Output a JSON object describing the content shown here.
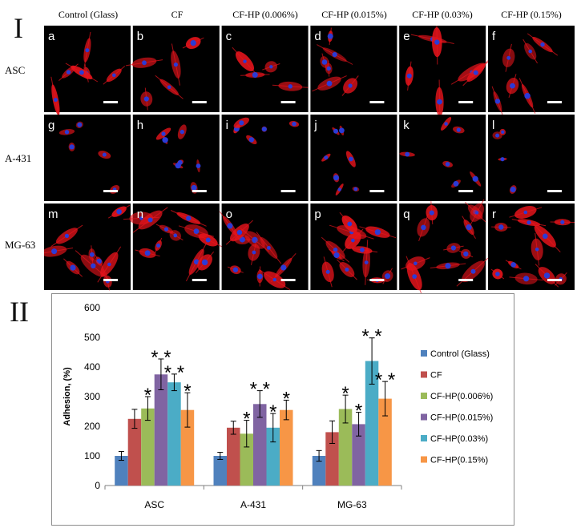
{
  "figure": {
    "panel_I": "I",
    "panel_II": "II",
    "columns": [
      "Control (Glass)",
      "CF",
      "CF-HP (0.006%)",
      "CF-HP (0.015%)",
      "CF-HP (0.03%)",
      "CF-HP (0.15%)"
    ],
    "rows": [
      "ASC",
      "A-431",
      "MG-63"
    ],
    "tile_letters": [
      [
        "a",
        "b",
        "c",
        "d",
        "e",
        "f"
      ],
      [
        "g",
        "h",
        "i",
        "j",
        "k",
        "l"
      ],
      [
        "m",
        "n",
        "o",
        "p",
        "q",
        "r"
      ]
    ],
    "colors": {
      "background": "#000000",
      "actin": "#e8141c",
      "nucleus": "#2b3bd6",
      "scale_bar": "#ffffff",
      "tile_letter": "#ffffff"
    }
  },
  "chart_data": {
    "type": "bar",
    "title": "",
    "xlabel": "",
    "ylabel": "Adhesion, (%)",
    "ylim": [
      0,
      600
    ],
    "yticks": [
      0,
      100,
      200,
      300,
      400,
      500,
      600
    ],
    "categories": [
      "ASC",
      "A-431",
      "MG-63"
    ],
    "legend_position": "right",
    "grid": false,
    "series": [
      {
        "name": "Control (Glass)",
        "color": "#4f81bd",
        "values": [
          100,
          100,
          100
        ],
        "errors": [
          15,
          12,
          18
        ],
        "marks": [
          "",
          "",
          ""
        ]
      },
      {
        "name": "CF",
        "color": "#c0504d",
        "values": [
          225,
          195,
          180
        ],
        "errors": [
          32,
          22,
          38
        ],
        "marks": [
          "",
          "",
          ""
        ]
      },
      {
        "name": "CF-HP(0.006%)",
        "color": "#9bbb59",
        "values": [
          260,
          175,
          258
        ],
        "errors": [
          40,
          45,
          47
        ],
        "marks": [
          "*",
          "*",
          "*"
        ]
      },
      {
        "name": "CF-HP(0.015%)",
        "color": "#8064a2",
        "values": [
          375,
          275,
          207
        ],
        "errors": [
          52,
          45,
          40
        ],
        "marks": [
          "**",
          "**",
          "*"
        ]
      },
      {
        "name": "CF-HP(0.03%)",
        "color": "#4bacc6",
        "values": [
          348,
          195,
          420
        ],
        "errors": [
          28,
          48,
          78
        ],
        "marks": [
          "**",
          "*",
          "**"
        ]
      },
      {
        "name": "CF-HP(0.15%)",
        "color": "#f79646",
        "values": [
          255,
          255,
          293
        ],
        "errors": [
          58,
          33,
          58
        ],
        "marks": [
          "*",
          "*",
          "**"
        ]
      }
    ]
  }
}
